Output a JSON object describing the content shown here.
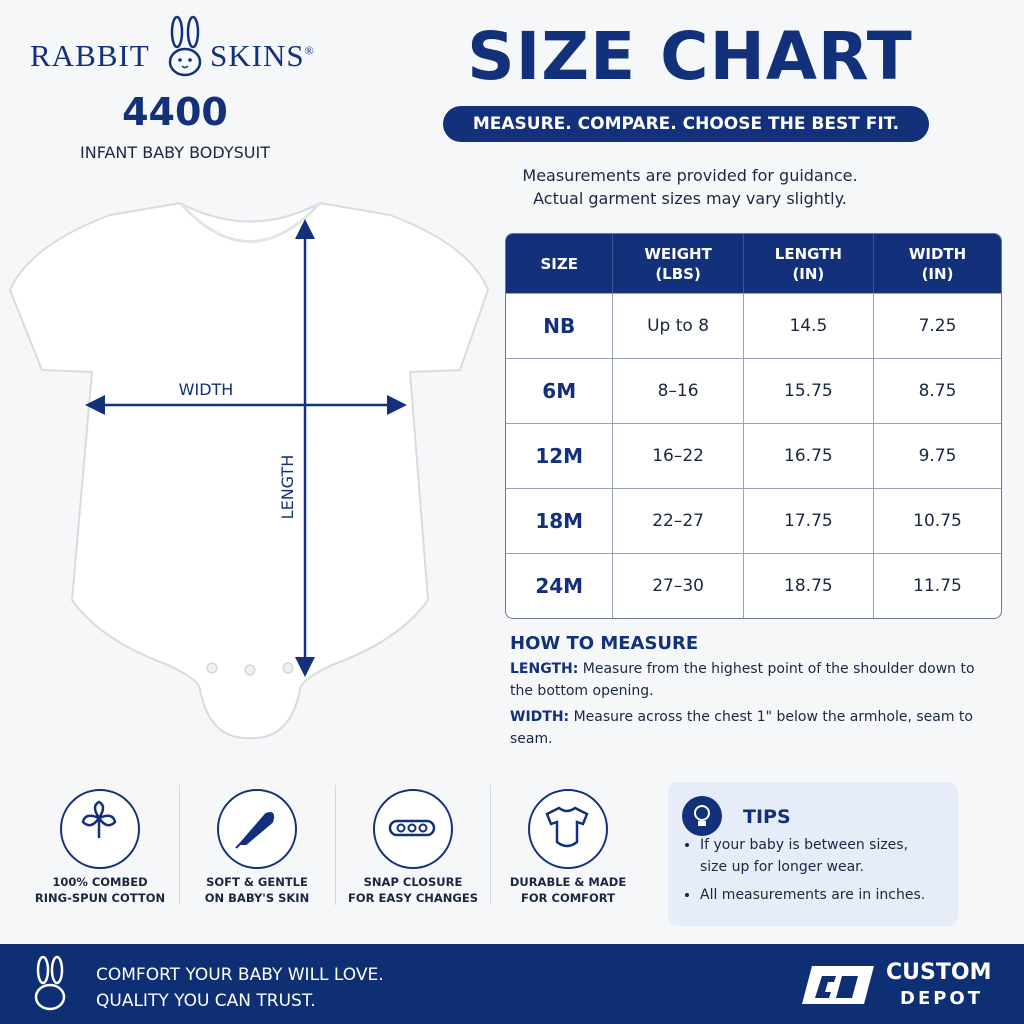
{
  "brand": {
    "left": "RABBIT",
    "right": "SKINS",
    "mark": "®"
  },
  "product": {
    "code": "4400",
    "name": "INFANT BABY BODYSUIT"
  },
  "header": {
    "title": "SIZE CHART",
    "tagline": "MEASURE. COMPARE. CHOOSE THE BEST FIT.",
    "note": [
      "Measurements are provided for guidance.",
      "Actual garment sizes may vary slightly."
    ]
  },
  "diagram": {
    "width_label": "WIDTH",
    "length_label": "LENGTH"
  },
  "table": {
    "columns": [
      [
        "SIZE"
      ],
      [
        "WEIGHT",
        "(LBS)"
      ],
      [
        "LENGTH",
        "(IN)"
      ],
      [
        "WIDTH",
        "(IN)"
      ]
    ],
    "rows": [
      [
        "NB",
        "Up to 8",
        "14.5",
        "7.25"
      ],
      [
        "6M",
        "8–16",
        "15.75",
        "8.75"
      ],
      [
        "12M",
        "16–22",
        "16.75",
        "9.75"
      ],
      [
        "18M",
        "22–27",
        "17.75",
        "10.75"
      ],
      [
        "24M",
        "27–30",
        "18.75",
        "11.75"
      ]
    ]
  },
  "how_to_measure": {
    "title": "HOW TO MEASURE",
    "items": [
      {
        "term": "LENGTH:",
        "text": "Measure from the highest point of the shoulder down to the bottom opening."
      },
      {
        "term": "WIDTH:",
        "text": "Measure across the chest 1\" below the armhole, seam to seam."
      }
    ]
  },
  "features": [
    [
      "100% COMBED",
      "RING-SPUN COTTON"
    ],
    [
      "SOFT & GENTLE",
      "ON BABY'S SKIN"
    ],
    [
      "SNAP CLOSURE",
      "FOR EASY CHANGES"
    ],
    [
      "DURABLE & MADE",
      "FOR COMFORT"
    ]
  ],
  "tips": {
    "title": "TIPS",
    "items": [
      "If your baby is between sizes, size up for longer wear.",
      "All measurements are in inches."
    ]
  },
  "footer": {
    "slogan": [
      "COMFORT YOUR BABY WILL LOVE.",
      "QUALITY YOU CAN TRUST."
    ],
    "logo": [
      "CUSTOM",
      "DEPOT"
    ]
  }
}
